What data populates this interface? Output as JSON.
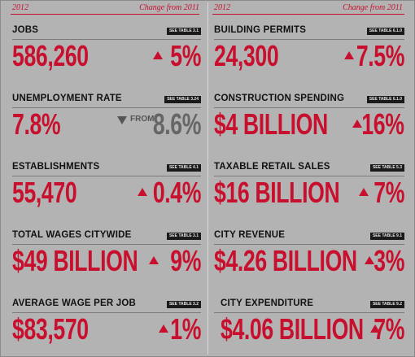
{
  "header": {
    "year": "2012",
    "change": "Change from 2011"
  },
  "left": [
    {
      "label": "JOBS",
      "see": "SEE TABLE 3.1",
      "value": "586,260",
      "direction": "up",
      "change": "5%"
    },
    {
      "label": "UNEMPLOYMENT RATE",
      "see": "SEE TABLE 3.24",
      "value": "7.8%",
      "direction": "down",
      "from_word": "FROM",
      "change": "8.6%"
    },
    {
      "label": "ESTABLISHMENTS",
      "see": "SEE TABLE 4.1",
      "value": "55,470",
      "direction": "up",
      "change": "0.4%"
    },
    {
      "label": "TOTAL WAGES CITYWIDE",
      "see": "SEE TABLE 3.1",
      "value": "$49 BILLION",
      "direction": "up",
      "change": "9%"
    },
    {
      "label": "AVERAGE WAGE PER JOB",
      "see": "SEE TABLE 3.2",
      "value": "$83,570",
      "direction": "up",
      "change": "1%"
    }
  ],
  "right": [
    {
      "label": "BUILDING PERMITS",
      "see": "SEE TABLE 6.1.0",
      "value": "24,300",
      "direction": "up",
      "change": "7.5%"
    },
    {
      "label": "CONSTRUCTION SPENDING",
      "see": "SEE TABLE 6.1.0",
      "value": "$4 BILLION",
      "direction": "up",
      "change": "16%"
    },
    {
      "label": "TAXABLE RETAIL SALES",
      "see": "SEE TABLE 5.3",
      "value": "$16 BILLION",
      "direction": "up",
      "change": "7%"
    },
    {
      "label": "CITY REVENUE",
      "see": "SEE TABLE 9.1",
      "value": "$4.26 BILLION",
      "direction": "up",
      "change": "3%"
    },
    {
      "label": "CITY EXPENDITURE",
      "see": "SEE TABLE 9.2",
      "value": "$4.06 BILLION",
      "direction": "up",
      "change": "7%"
    }
  ],
  "colors": {
    "accent": "#c8102e",
    "background": "#b3b3b3",
    "label": "#111111",
    "muted": "#666666"
  }
}
